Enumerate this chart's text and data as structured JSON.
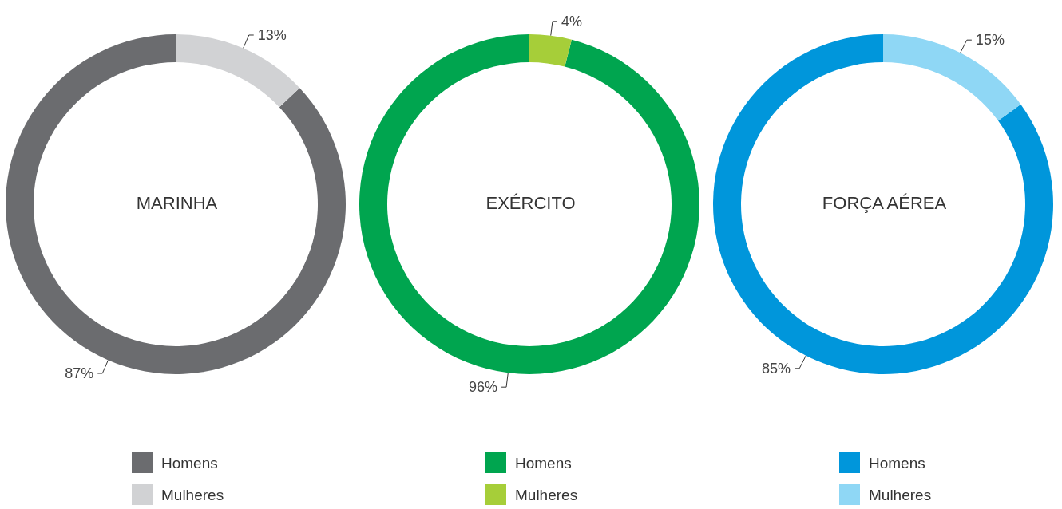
{
  "chart_data": [
    {
      "type": "donut",
      "title": "MARINHA",
      "categories": [
        "Homens",
        "Mulheres"
      ],
      "values": [
        87,
        13
      ],
      "value_labels": [
        "87%",
        "13%"
      ],
      "colors": [
        "#6b6c6f",
        "#d1d2d4"
      ],
      "legend": "bottom"
    },
    {
      "type": "donut",
      "title": "EXÉRCITO",
      "categories": [
        "Homens",
        "Mulheres"
      ],
      "values": [
        96,
        4
      ],
      "value_labels": [
        "96%",
        "4%"
      ],
      "colors": [
        "#00a54f",
        "#a6ce39"
      ],
      "legend": "bottom"
    },
    {
      "type": "donut",
      "title": "FORÇA AÉREA",
      "categories": [
        "Homens",
        "Mulheres"
      ],
      "values": [
        85,
        15
      ],
      "value_labels": [
        "85%",
        "15%"
      ],
      "colors": [
        "#0096db",
        "#8fd7f5"
      ],
      "legend": "bottom"
    }
  ]
}
